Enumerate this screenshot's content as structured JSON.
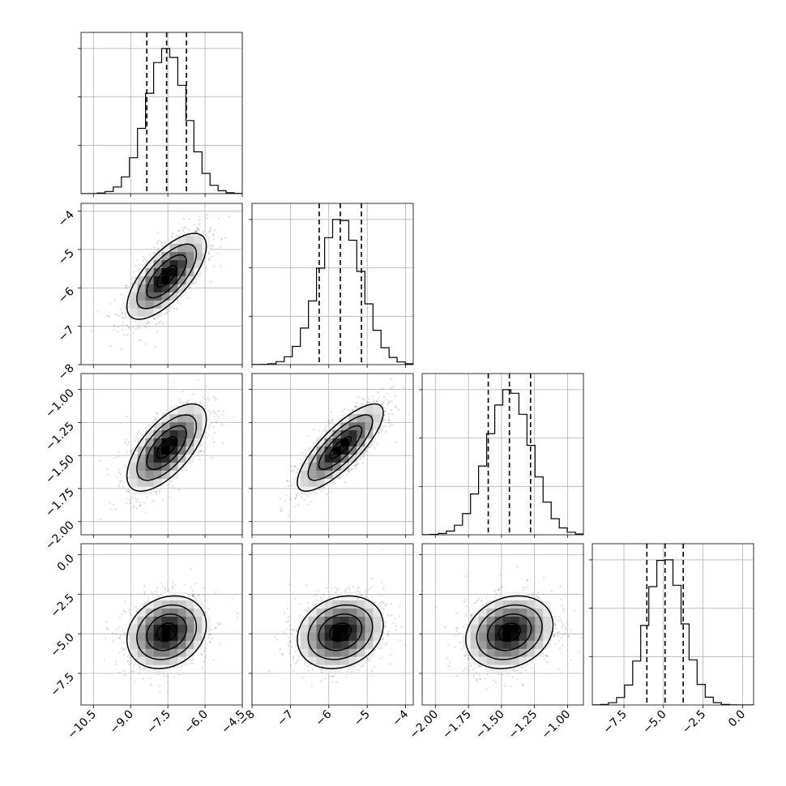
{
  "chart_data": {
    "type": "corner",
    "parameters": [
      {
        "mean": -7.55,
        "sd": 0.8,
        "range": [
          -11.0,
          -4.5
        ],
        "ticks": [
          -10.5,
          -9.0,
          -7.5,
          -6.0,
          -4.5
        ],
        "tick_labels": [
          "−10.5",
          "−9.0",
          "−7.5",
          "−6.0",
          "−4.5"
        ],
        "quantiles": [
          -8.35,
          -7.55,
          -6.75
        ]
      },
      {
        "mean": -5.7,
        "sd": 0.56,
        "range": [
          -8,
          -3.8
        ],
        "ticks": [
          -8,
          -7,
          -6,
          -5,
          -4
        ],
        "tick_labels": [
          "−8",
          "−7",
          "−6",
          "−5",
          "−4"
        ],
        "quantiles": [
          -6.25,
          -5.7,
          -5.15
        ]
      },
      {
        "mean": -1.44,
        "sd": 0.165,
        "range": [
          -2.1,
          -0.88
        ],
        "ticks": [
          -2.0,
          -1.75,
          -1.5,
          -1.25,
          -1.0
        ],
        "tick_labels": [
          "−2.00",
          "−1.75",
          "−1.50",
          "−1.25",
          "−1.00"
        ],
        "quantiles": [
          -1.6,
          -1.44,
          -1.28
        ]
      },
      {
        "mean": -4.9,
        "sd": 1.15,
        "range": [
          -9.5,
          0.7
        ],
        "ticks": [
          -7.5,
          -5.0,
          -2.5,
          0.0
        ],
        "tick_labels": [
          "−7.5",
          "−5.0",
          "−2.5",
          "0.0"
        ],
        "quantiles": [
          -6.05,
          -4.9,
          -3.75
        ]
      }
    ],
    "correlations": [
      [
        1.0,
        0.7,
        0.65,
        0.2
      ],
      [
        0.7,
        1.0,
        0.8,
        0.2
      ],
      [
        0.65,
        0.8,
        1.0,
        0.2
      ],
      [
        0.2,
        0.2,
        0.2,
        1.0
      ]
    ],
    "contour_levels_sigma": [
      0.5,
      1.0,
      1.5,
      2.0
    ],
    "hist_bins": 20,
    "grid": true,
    "colors": {
      "hist": "#000000",
      "points": "#777777",
      "density_max": "#000000",
      "gridline": "#b0b0b0"
    }
  }
}
